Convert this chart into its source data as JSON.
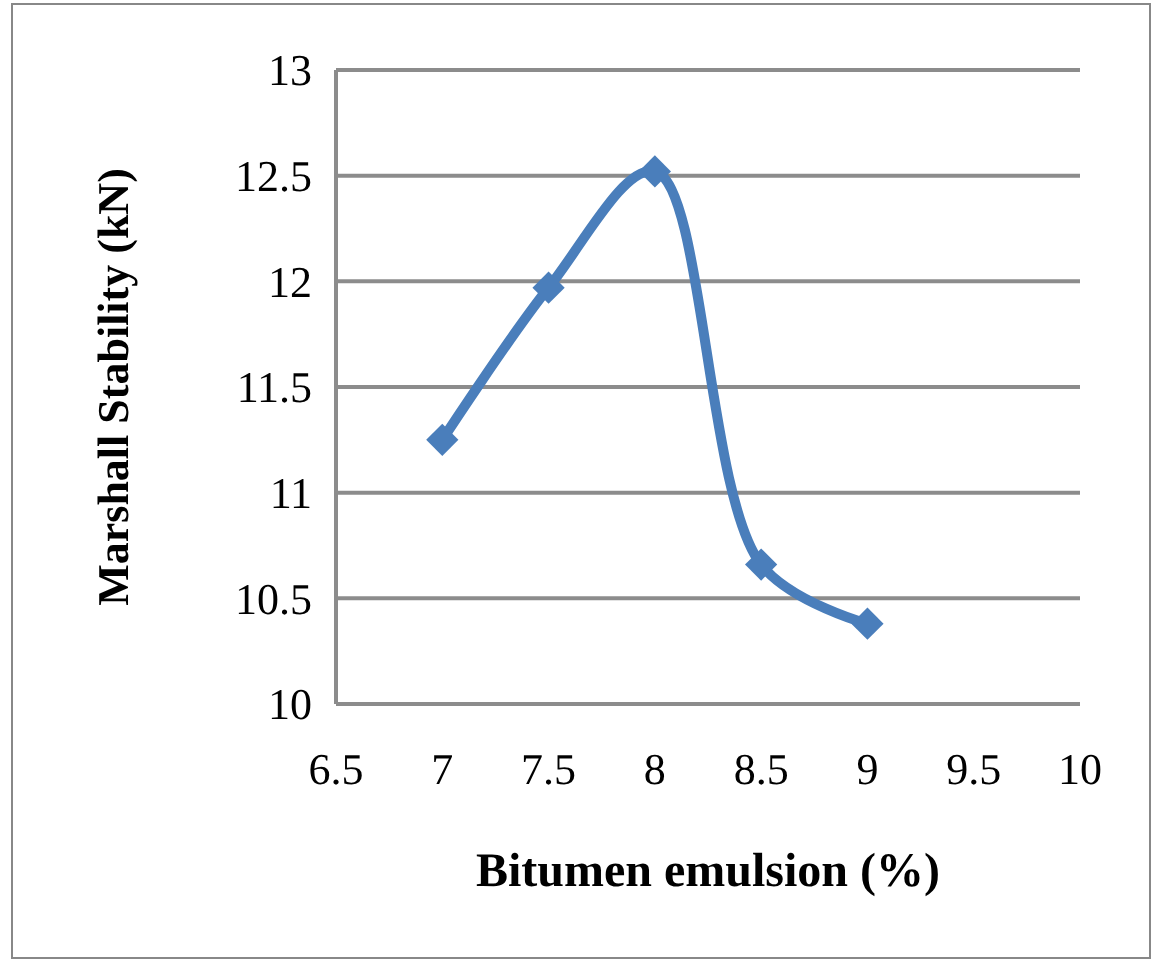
{
  "chart_data": {
    "type": "line",
    "xlabel": "Bitumen emulsion (%)",
    "ylabel": "Marshall Stability (kN)",
    "x": [
      7,
      7.5,
      8,
      8.5,
      9
    ],
    "series": [
      {
        "color": "#4a7ebb",
        "values": [
          11.25,
          11.97,
          12.52,
          10.66,
          10.38
        ]
      }
    ],
    "xlim": [
      6.5,
      10
    ],
    "xticks": [
      6.5,
      7,
      7.5,
      8,
      8.5,
      9,
      9.5,
      10
    ],
    "ylim": [
      10,
      13
    ],
    "yticks": [
      10,
      10.5,
      11,
      11.5,
      12,
      12.5,
      13
    ],
    "grid": "y",
    "marker": "diamond",
    "line_style": "solid"
  }
}
